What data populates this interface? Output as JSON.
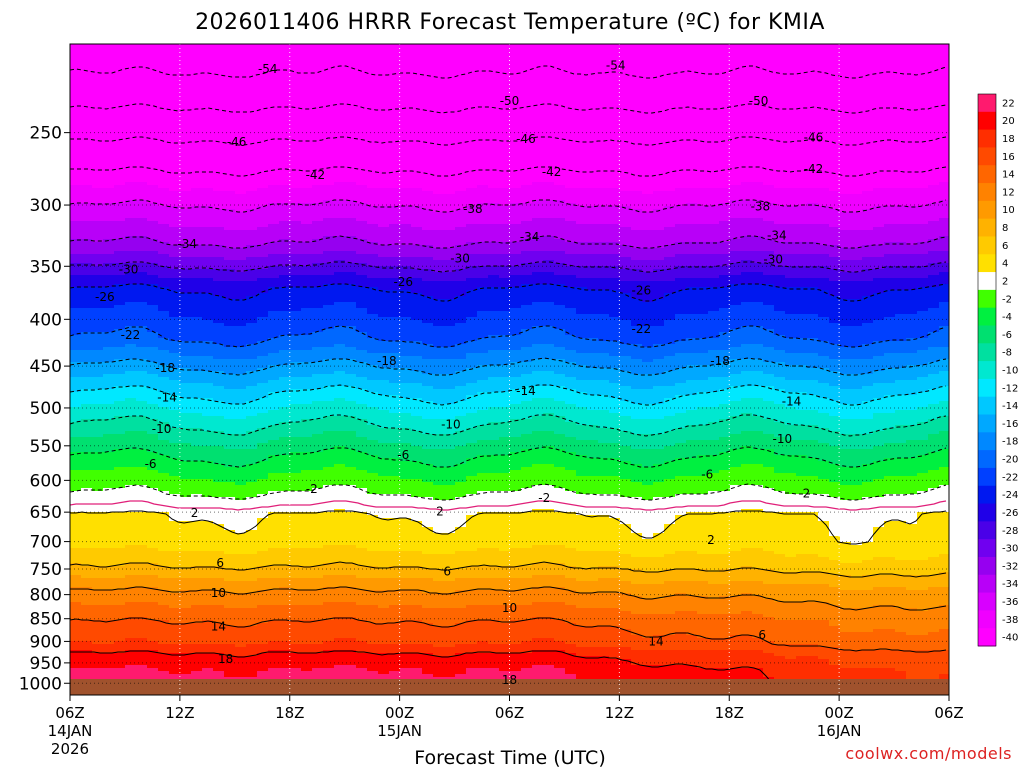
{
  "chart_data": {
    "type": "heatmap",
    "title": "2026011406 HRRR Forecast Temperature (ºC) for KMIA",
    "xlabel": "Forecast Time (UTC)",
    "ylabel": "",
    "credit": "coolwx.com/models",
    "x_ticks": [
      {
        "hours": 0,
        "label": "06Z",
        "date": "14JAN",
        "year": "2026"
      },
      {
        "hours": 6,
        "label": "12Z",
        "date": "",
        "year": ""
      },
      {
        "hours": 12,
        "label": "18Z",
        "date": "",
        "year": ""
      },
      {
        "hours": 18,
        "label": "00Z",
        "date": "15JAN",
        "year": ""
      },
      {
        "hours": 24,
        "label": "06Z",
        "date": "",
        "year": ""
      },
      {
        "hours": 30,
        "label": "12Z",
        "date": "",
        "year": ""
      },
      {
        "hours": 36,
        "label": "18Z",
        "date": "",
        "year": ""
      },
      {
        "hours": 42,
        "label": "00Z",
        "date": "16JAN",
        "year": ""
      },
      {
        "hours": 48,
        "label": "06Z",
        "date": "",
        "year": ""
      }
    ],
    "xlim_hours": [
      0,
      48
    ],
    "y_axis": "pressure (hPa), log scale, inverted",
    "ylim_hpa": [
      1030,
      200
    ],
    "y_ticks": [
      250,
      300,
      350,
      400,
      450,
      500,
      550,
      600,
      650,
      700,
      750,
      800,
      850,
      900,
      950,
      1000
    ],
    "colorbar_levels": [
      22,
      20,
      18,
      16,
      14,
      12,
      10,
      8,
      6,
      4,
      2,
      -2,
      -4,
      -6,
      -8,
      -10,
      -12,
      -14,
      -16,
      -18,
      -20,
      -22,
      -24,
      -26,
      -28,
      -30,
      -32,
      -34,
      -36,
      -38,
      -40
    ],
    "colorbar_colors": [
      "#ff1a6e",
      "#ff0000",
      "#ff2e00",
      "#ff4a00",
      "#ff6600",
      "#ff8200",
      "#ff9a00",
      "#ffb200",
      "#ffca00",
      "#ffe000",
      "#ffffff",
      "#40ff00",
      "#00f040",
      "#00e070",
      "#00e0a0",
      "#00e8d0",
      "#00e8ff",
      "#00c8ff",
      "#00a8ff",
      "#0088ff",
      "#0068ff",
      "#0040ff",
      "#0018f0",
      "#2000e8",
      "#4a00e8",
      "#7000f0",
      "#9600f0",
      "#b800f8",
      "#d800ff",
      "#f000ff",
      "#ff00ff"
    ],
    "temperature_profile_hour0": [
      {
        "hpa": 200,
        "t": -56
      },
      {
        "hpa": 215,
        "t": -54
      },
      {
        "hpa": 235,
        "t": -50
      },
      {
        "hpa": 255,
        "t": -46
      },
      {
        "hpa": 275,
        "t": -42
      },
      {
        "hpa": 300,
        "t": -38
      },
      {
        "hpa": 330,
        "t": -34
      },
      {
        "hpa": 350,
        "t": -30
      },
      {
        "hpa": 370,
        "t": -26
      },
      {
        "hpa": 420,
        "t": -22
      },
      {
        "hpa": 450,
        "t": -18
      },
      {
        "hpa": 482,
        "t": -14
      },
      {
        "hpa": 522,
        "t": -10
      },
      {
        "hpa": 565,
        "t": -6
      },
      {
        "hpa": 620,
        "t": -2
      },
      {
        "hpa": 640,
        "t": 0
      },
      {
        "hpa": 652,
        "t": 2
      },
      {
        "hpa": 700,
        "t": 3
      },
      {
        "hpa": 745,
        "t": 6
      },
      {
        "hpa": 790,
        "t": 10
      },
      {
        "hpa": 855,
        "t": 14
      },
      {
        "hpa": 905,
        "t": 16
      },
      {
        "hpa": 925,
        "t": 18
      },
      {
        "hpa": 965,
        "t": 20
      },
      {
        "hpa": 1010,
        "t": 21
      }
    ],
    "contour_labels": [
      {
        "text": "-54",
        "hours": 10.8,
        "hpa": 213
      },
      {
        "text": "-54",
        "hours": 29.8,
        "hpa": 211
      },
      {
        "text": "-50",
        "hours": 24.0,
        "hpa": 231
      },
      {
        "text": "-50",
        "hours": 37.6,
        "hpa": 231
      },
      {
        "text": "-46",
        "hours": 9.1,
        "hpa": 256
      },
      {
        "text": "-46",
        "hours": 24.9,
        "hpa": 254
      },
      {
        "text": "-46",
        "hours": 40.6,
        "hpa": 253
      },
      {
        "text": "-42",
        "hours": 13.4,
        "hpa": 278
      },
      {
        "text": "-42",
        "hours": 26.3,
        "hpa": 276
      },
      {
        "text": "-42",
        "hours": 40.6,
        "hpa": 274
      },
      {
        "text": "-38",
        "hours": 22.0,
        "hpa": 303
      },
      {
        "text": "-38",
        "hours": 37.7,
        "hpa": 301
      },
      {
        "text": "-34",
        "hours": 6.4,
        "hpa": 331
      },
      {
        "text": "-34",
        "hours": 25.1,
        "hpa": 325
      },
      {
        "text": "-34",
        "hours": 38.6,
        "hpa": 324
      },
      {
        "text": "-30",
        "hours": 3.2,
        "hpa": 353
      },
      {
        "text": "-30",
        "hours": 21.3,
        "hpa": 343
      },
      {
        "text": "-30",
        "hours": 38.4,
        "hpa": 344
      },
      {
        "text": "-26",
        "hours": 1.9,
        "hpa": 378
      },
      {
        "text": "-26",
        "hours": 18.2,
        "hpa": 364
      },
      {
        "text": "-26",
        "hours": 31.2,
        "hpa": 372
      },
      {
        "text": "-22",
        "hours": 3.3,
        "hpa": 416
      },
      {
        "text": "-22",
        "hours": 31.2,
        "hpa": 410
      },
      {
        "text": "-18",
        "hours": 5.2,
        "hpa": 452
      },
      {
        "text": "-18",
        "hours": 17.3,
        "hpa": 444
      },
      {
        "text": "-18",
        "hours": 35.5,
        "hpa": 444
      },
      {
        "text": "-14",
        "hours": 5.3,
        "hpa": 487
      },
      {
        "text": "-14",
        "hours": 24.9,
        "hpa": 479
      },
      {
        "text": "-14",
        "hours": 39.4,
        "hpa": 492
      },
      {
        "text": "-10",
        "hours": 5.0,
        "hpa": 527
      },
      {
        "text": "-10",
        "hours": 20.8,
        "hpa": 521
      },
      {
        "text": "-10",
        "hours": 38.9,
        "hpa": 541
      },
      {
        "text": "-6",
        "hours": 4.4,
        "hpa": 576
      },
      {
        "text": "-6",
        "hours": 18.2,
        "hpa": 563
      },
      {
        "text": "-6",
        "hours": 34.8,
        "hpa": 591
      },
      {
        "text": "-2",
        "hours": 13.2,
        "hpa": 613
      },
      {
        "text": "-2",
        "hours": 25.9,
        "hpa": 627
      },
      {
        "text": "-2",
        "hours": 40.1,
        "hpa": 620
      },
      {
        "text": "2",
        "hours": 6.8,
        "hpa": 651
      },
      {
        "text": "2",
        "hours": 20.2,
        "hpa": 649
      },
      {
        "text": "2",
        "hours": 35.0,
        "hpa": 697
      },
      {
        "text": "6",
        "hours": 8.2,
        "hpa": 739
      },
      {
        "text": "6",
        "hours": 20.6,
        "hpa": 755
      },
      {
        "text": "6",
        "hours": 37.8,
        "hpa": 886
      },
      {
        "text": "10",
        "hours": 8.1,
        "hpa": 797
      },
      {
        "text": "10",
        "hours": 24.0,
        "hpa": 827
      },
      {
        "text": "14",
        "hours": 8.1,
        "hpa": 867
      },
      {
        "text": "14",
        "hours": 32.0,
        "hpa": 900
      },
      {
        "text": "18",
        "hours": 8.5,
        "hpa": 941
      },
      {
        "text": "18",
        "hours": 24.0,
        "hpa": 992
      }
    ]
  }
}
